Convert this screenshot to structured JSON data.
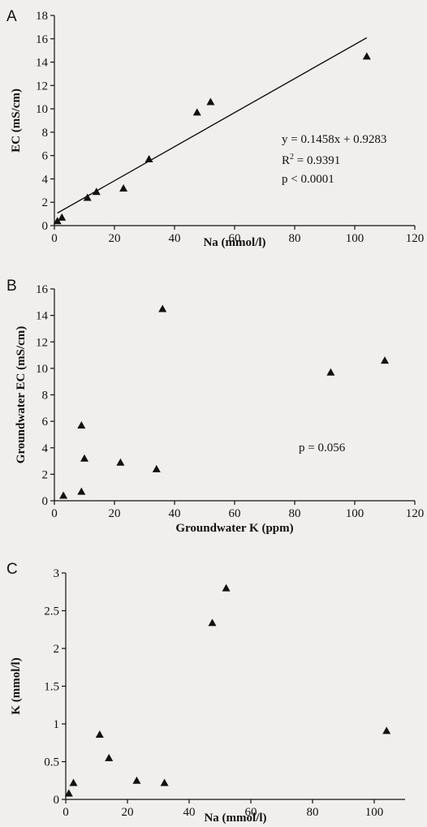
{
  "chart_data": [
    {
      "panel": "A",
      "type": "scatter",
      "xlabel": "Na (mmol/l)",
      "ylabel": "EC (mS/cm)",
      "xlim": [
        0,
        120
      ],
      "ylim": [
        0,
        18
      ],
      "xticks": [
        0,
        20,
        40,
        60,
        80,
        100,
        120
      ],
      "yticks": [
        0,
        2,
        4,
        6,
        8,
        10,
        12,
        14,
        16,
        18
      ],
      "grid": false,
      "marker": "triangle",
      "points": [
        {
          "x": 1,
          "y": 0.4
        },
        {
          "x": 2.5,
          "y": 0.7
        },
        {
          "x": 11,
          "y": 2.4
        },
        {
          "x": 14,
          "y": 2.9
        },
        {
          "x": 23,
          "y": 3.2
        },
        {
          "x": 31.5,
          "y": 5.7
        },
        {
          "x": 47.5,
          "y": 9.7
        },
        {
          "x": 52,
          "y": 10.6
        },
        {
          "x": 104,
          "y": 14.5
        }
      ],
      "trendline": {
        "slope": 0.1458,
        "intercept": 0.9283,
        "x_range": [
          1,
          104
        ]
      },
      "annotations": {
        "equation": "y = 0.1458x + 0.9283",
        "r2_prefix": "R",
        "r2_sup": "2",
        "r2_value": " = 0.9391",
        "p_value": "p < 0.0001"
      }
    },
    {
      "panel": "B",
      "type": "scatter",
      "xlabel": "Groundwater K (ppm)",
      "ylabel": "Groundwater EC (mS/cm)",
      "xlim": [
        0,
        120
      ],
      "ylim": [
        0,
        16
      ],
      "xticks": [
        0,
        20,
        40,
        60,
        80,
        100,
        120
      ],
      "yticks": [
        0,
        2,
        4,
        6,
        8,
        10,
        12,
        14,
        16
      ],
      "grid": false,
      "marker": "triangle",
      "points": [
        {
          "x": 3,
          "y": 0.4
        },
        {
          "x": 9,
          "y": 0.7
        },
        {
          "x": 9,
          "y": 5.7
        },
        {
          "x": 10,
          "y": 3.2
        },
        {
          "x": 22,
          "y": 2.9
        },
        {
          "x": 34,
          "y": 2.4
        },
        {
          "x": 36,
          "y": 14.5
        },
        {
          "x": 92,
          "y": 9.7
        },
        {
          "x": 110,
          "y": 10.6
        }
      ],
      "annotations": {
        "p_value": "p = 0.056"
      }
    },
    {
      "panel": "C",
      "type": "scatter",
      "xlabel": "Na (mmol/l)",
      "ylabel": "K (mmol/l)",
      "xlim": [
        0,
        110
      ],
      "ylim": [
        0,
        3
      ],
      "xticks": [
        0,
        20,
        40,
        60,
        80,
        100
      ],
      "yticks": [
        0,
        0.5,
        1,
        1.5,
        2,
        2.5,
        3
      ],
      "grid": false,
      "marker": "triangle",
      "points": [
        {
          "x": 1,
          "y": 0.08
        },
        {
          "x": 2.5,
          "y": 0.22
        },
        {
          "x": 11,
          "y": 0.86
        },
        {
          "x": 14,
          "y": 0.55
        },
        {
          "x": 23,
          "y": 0.25
        },
        {
          "x": 32,
          "y": 0.22
        },
        {
          "x": 47.5,
          "y": 2.34
        },
        {
          "x": 52,
          "y": 2.8
        },
        {
          "x": 104,
          "y": 0.91
        }
      ]
    }
  ]
}
